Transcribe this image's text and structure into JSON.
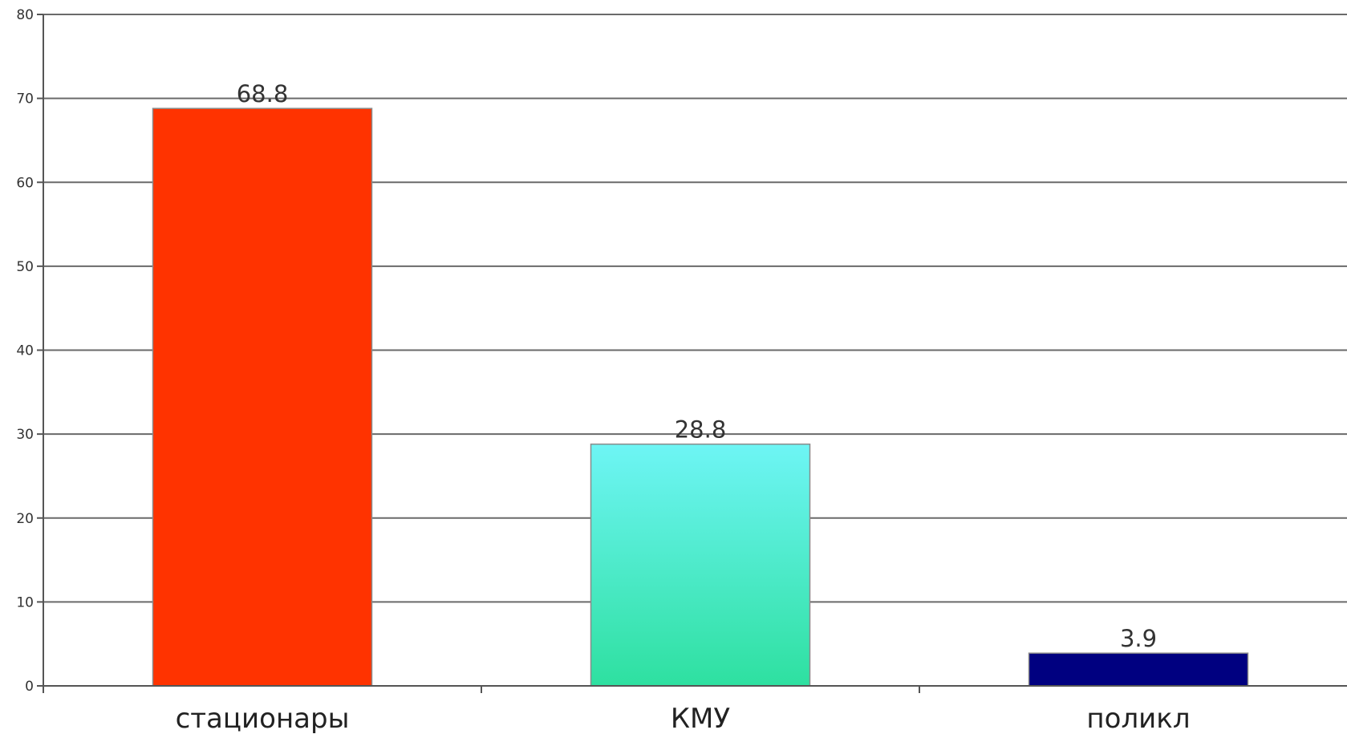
{
  "chart_data": {
    "type": "bar",
    "categories": [
      "стационары",
      "КМУ",
      "поликл"
    ],
    "values": [
      68.8,
      28.8,
      3.9
    ],
    "data_labels": [
      "68.8",
      "28.8",
      "3.9"
    ],
    "title": "",
    "xlabel": "",
    "ylabel": "",
    "ylim": [
      0,
      80
    ],
    "yticks": [
      0,
      10,
      20,
      30,
      40,
      50,
      60,
      70,
      80
    ],
    "grid": true,
    "legend": "none",
    "colors": [
      {
        "top": "#ff3300",
        "bottom": "#ff3300"
      },
      {
        "top": "#6ef5f5",
        "bottom": "#2ee0a0"
      },
      {
        "top": "#000080",
        "bottom": "#000080"
      }
    ]
  }
}
